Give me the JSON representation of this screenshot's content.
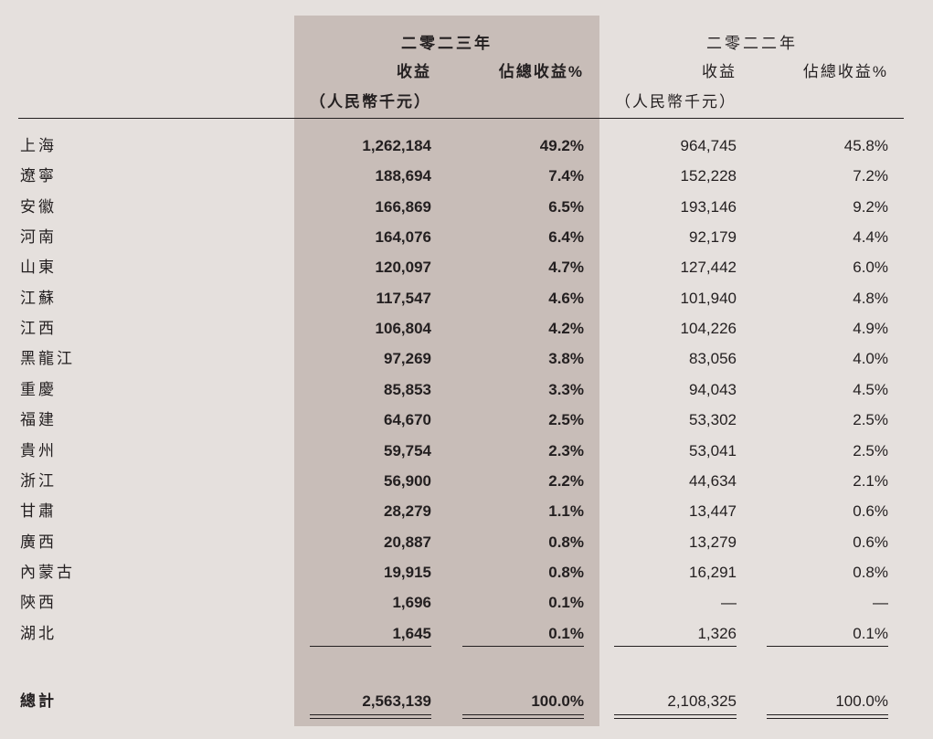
{
  "header": {
    "year_2023": "二零二三年",
    "year_2022": "二零二二年",
    "revenue_label": "收益",
    "unit_label": "（人民幣千元）",
    "pct_label": "佔總收益%"
  },
  "rows": [
    {
      "region": "上海",
      "rev_2023": "1,262,184",
      "pct_2023": "49.2%",
      "rev_2022": "964,745",
      "pct_2022": "45.8%"
    },
    {
      "region": "遼寧",
      "rev_2023": "188,694",
      "pct_2023": "7.4%",
      "rev_2022": "152,228",
      "pct_2022": "7.2%"
    },
    {
      "region": "安徽",
      "rev_2023": "166,869",
      "pct_2023": "6.5%",
      "rev_2022": "193,146",
      "pct_2022": "9.2%"
    },
    {
      "region": "河南",
      "rev_2023": "164,076",
      "pct_2023": "6.4%",
      "rev_2022": "92,179",
      "pct_2022": "4.4%"
    },
    {
      "region": "山東",
      "rev_2023": "120,097",
      "pct_2023": "4.7%",
      "rev_2022": "127,442",
      "pct_2022": "6.0%"
    },
    {
      "region": "江蘇",
      "rev_2023": "117,547",
      "pct_2023": "4.6%",
      "rev_2022": "101,940",
      "pct_2022": "4.8%"
    },
    {
      "region": "江西",
      "rev_2023": "106,804",
      "pct_2023": "4.2%",
      "rev_2022": "104,226",
      "pct_2022": "4.9%"
    },
    {
      "region": "黑龍江",
      "rev_2023": "97,269",
      "pct_2023": "3.8%",
      "rev_2022": "83,056",
      "pct_2022": "4.0%"
    },
    {
      "region": "重慶",
      "rev_2023": "85,853",
      "pct_2023": "3.3%",
      "rev_2022": "94,043",
      "pct_2022": "4.5%"
    },
    {
      "region": "福建",
      "rev_2023": "64,670",
      "pct_2023": "2.5%",
      "rev_2022": "53,302",
      "pct_2022": "2.5%"
    },
    {
      "region": "貴州",
      "rev_2023": "59,754",
      "pct_2023": "2.3%",
      "rev_2022": "53,041",
      "pct_2022": "2.5%"
    },
    {
      "region": "浙江",
      "rev_2023": "56,900",
      "pct_2023": "2.2%",
      "rev_2022": "44,634",
      "pct_2022": "2.1%"
    },
    {
      "region": "甘肅",
      "rev_2023": "28,279",
      "pct_2023": "1.1%",
      "rev_2022": "13,447",
      "pct_2022": "0.6%"
    },
    {
      "region": "廣西",
      "rev_2023": "20,887",
      "pct_2023": "0.8%",
      "rev_2022": "13,279",
      "pct_2022": "0.6%"
    },
    {
      "region": "內蒙古",
      "rev_2023": "19,915",
      "pct_2023": "0.8%",
      "rev_2022": "16,291",
      "pct_2022": "0.8%"
    },
    {
      "region": "陝西",
      "rev_2023": "1,696",
      "pct_2023": "0.1%",
      "rev_2022": "—",
      "pct_2022": "—"
    },
    {
      "region": "湖北",
      "rev_2023": "1,645",
      "pct_2023": "0.1%",
      "rev_2022": "1,326",
      "pct_2022": "0.1%"
    }
  ],
  "total": {
    "region": "總計",
    "rev_2023": "2,563,139",
    "pct_2023": "100.0%",
    "rev_2022": "2,108,325",
    "pct_2022": "100.0%"
  }
}
